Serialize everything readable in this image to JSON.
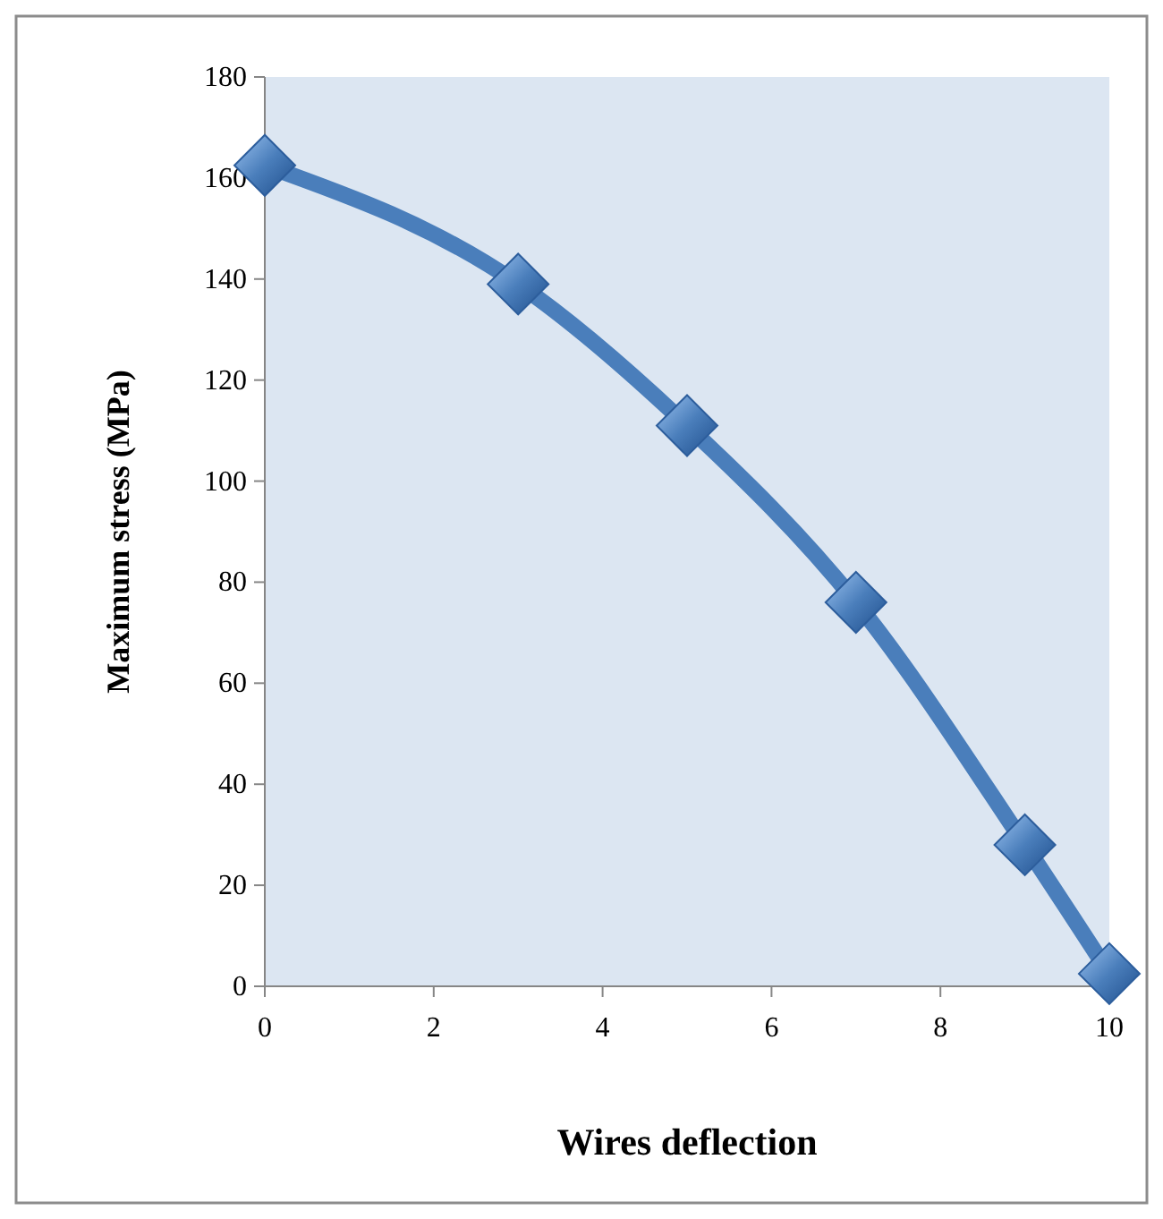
{
  "chart_data": {
    "type": "line",
    "xlabel": "Wires deflection",
    "ylabel": "Maximum stress (MPa)",
    "x": [
      0,
      3,
      5,
      7,
      9,
      10
    ],
    "series": [
      {
        "color": "#4a7ebb",
        "values": [
          162.5,
          139,
          111,
          76,
          28,
          2.5
        ]
      }
    ],
    "xlim": [
      0,
      10
    ],
    "xticks": [
      0,
      2,
      4,
      6,
      8,
      10
    ],
    "ylim": [
      0,
      180
    ],
    "yticks": [
      0,
      20,
      40,
      60,
      80,
      100,
      120,
      140,
      160,
      180
    ],
    "grid": false,
    "marker": "diamond",
    "line_style": "solid"
  }
}
